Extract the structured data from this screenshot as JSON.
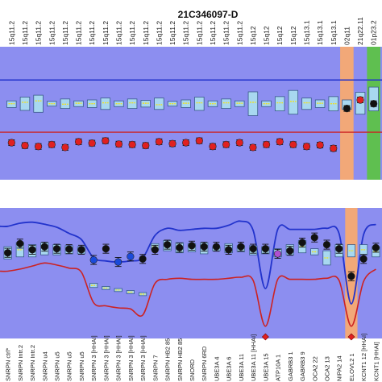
{
  "title": "21C346097-D",
  "colors": {
    "panel_bg": "#8c8ef0",
    "upper_limit_line": "#2233cc",
    "lower_limit_line": "#cc2222",
    "box_fill": "#a8d8f0",
    "box_stroke": "#3a5a8a",
    "median_mark": "#f0e020",
    "sample_red": "#e02020",
    "sample_black": "#111111",
    "sample_blue": "#1a4adb",
    "sample_purple": "#b050d0",
    "highlight_orange": "#f2a878",
    "highlight_green": "#5fbf50"
  },
  "chart_data": [
    {
      "type": "scatter",
      "panel": "top",
      "title": "21C346097-D",
      "categories": [
        "15q11.2",
        "15q11.2",
        "15q11.2",
        "15q11.2",
        "15q11.2",
        "15q11.2",
        "15q11.2",
        "15q11.2",
        "15q11.2",
        "15q11.2",
        "15q11.2",
        "15q11.2",
        "15q11.2",
        "15q11.2",
        "15q11.2",
        "15q11.2",
        "15q11.2",
        "15q11.2",
        "15q12",
        "15q12",
        "15q12",
        "15q12",
        "15q13.1",
        "15q13.1",
        "15q13.1",
        "02q11",
        "21q22.11",
        "01p23.2"
      ],
      "reference_median": [
        0.0,
        0.03,
        0.06,
        0.0,
        -0.01,
        0.01,
        0.0,
        0.02,
        0.0,
        0.02,
        0.01,
        -0.02,
        0.0,
        0.01,
        0.02,
        0.0,
        0.02,
        0.01,
        0.03,
        0.0,
        0.02,
        0.05,
        0.02,
        0.01,
        0.0,
        -0.05,
        0.05,
        -0.03
      ],
      "reference_box": [
        [
          -0.08,
          0.06
        ],
        [
          -0.14,
          0.14
        ],
        [
          -0.18,
          0.18
        ],
        [
          -0.05,
          0.05
        ],
        [
          -0.1,
          0.1
        ],
        [
          -0.06,
          0.06
        ],
        [
          -0.08,
          0.08
        ],
        [
          -0.12,
          0.12
        ],
        [
          -0.06,
          0.06
        ],
        [
          -0.1,
          0.1
        ],
        [
          -0.07,
          0.07
        ],
        [
          -0.12,
          0.12
        ],
        [
          -0.05,
          0.05
        ],
        [
          -0.08,
          0.08
        ],
        [
          -0.14,
          0.14
        ],
        [
          -0.06,
          0.06
        ],
        [
          -0.1,
          0.1
        ],
        [
          -0.06,
          0.06
        ],
        [
          -0.25,
          0.25
        ],
        [
          -0.06,
          0.06
        ],
        [
          -0.15,
          0.15
        ],
        [
          -0.22,
          0.28
        ],
        [
          -0.12,
          0.12
        ],
        [
          -0.08,
          0.08
        ],
        [
          -0.15,
          0.15
        ],
        [
          -0.12,
          0.08
        ],
        [
          -0.22,
          0.24
        ],
        [
          -0.15,
          0.35
        ]
      ],
      "sample_values": [
        -0.82,
        -0.88,
        -0.9,
        -0.86,
        -0.92,
        -0.8,
        -0.83,
        -0.78,
        -0.85,
        -0.86,
        -0.88,
        -0.8,
        -0.84,
        -0.82,
        -0.78,
        -0.9,
        -0.86,
        -0.82,
        -0.92,
        -0.86,
        -0.8,
        -0.86,
        -0.9,
        -0.87,
        -0.94,
        -0.1,
        0.08,
        0.0
      ],
      "sample_error": 0.06,
      "upper_limit": 0.5,
      "lower_limit": -0.6,
      "ylim": [
        -1.6,
        1.2
      ],
      "highlights": [
        {
          "index": 25,
          "color": "orange"
        },
        {
          "index": 27,
          "color": "green"
        }
      ]
    },
    {
      "type": "scatter",
      "panel": "bottom",
      "categories": [
        "SNRPN ctrl*",
        "SNRPN Intr.2",
        "SNRPN Intr.2",
        "SNRPN u4",
        "SNRPN u5",
        "SNRPN u5",
        "SNRPN u5",
        "SNRPN 3 [HHAI]",
        "SNRPN 3 [HHAI]",
        "SNRPN 3 [HHAI]",
        "SNRPN 3 [HHAI]",
        "SNRPN 3 [HHAI]",
        "SNRPN 7",
        "SNRPN HB2 85",
        "SNRPN HB2 85",
        "SNORD",
        "SNRPN 6RD",
        "UBE3A 4",
        "UBE3A 6",
        "UBE3A 11",
        "UBE3A 11 [HHAI]",
        "UBE3A 15",
        "ATP10A 1",
        "GABRB3 1",
        "GABRB3 9",
        "OCA2 22",
        "OCA2 13",
        "NIPA2 14",
        "ELOVL2 1",
        "KCNT1 12 [HHAI]",
        "KCNT1 [HHAI]"
      ],
      "sample_values": [
        0.0,
        0.45,
        0.15,
        0.3,
        0.2,
        0.18,
        0.15,
        -0.35,
        0.2,
        -0.45,
        -0.18,
        -0.3,
        0.15,
        0.4,
        0.25,
        0.35,
        0.3,
        0.3,
        0.15,
        0.3,
        0.2,
        0.2,
        -0.05,
        0.1,
        0.5,
        0.75,
        0.4,
        0.2,
        -1.15,
        -0.3,
        0.25
      ],
      "sample_colors": [
        "black",
        "black",
        "black",
        "black",
        "black",
        "black",
        "black",
        "blue",
        "black",
        "blue",
        "blue",
        "black",
        "black",
        "black",
        "black",
        "black",
        "black",
        "black",
        "black",
        "black",
        "black",
        "black",
        "purple",
        "black",
        "black",
        "black",
        "black",
        "black",
        "black",
        "black",
        "black"
      ],
      "reference_box": [
        [
          -0.3,
          0.3
        ],
        [
          -0.2,
          0.5
        ],
        [
          -0.2,
          0.4
        ],
        [
          -0.1,
          0.5
        ],
        [
          -0.1,
          0.4
        ],
        [
          -0.05,
          0.35
        ],
        [
          -0.05,
          0.3
        ],
        [
          -1.7,
          -1.5
        ],
        [
          -1.8,
          -1.65
        ],
        [
          -1.9,
          -1.75
        ],
        [
          -2.0,
          -1.85
        ],
        [
          -2.1,
          -1.95
        ],
        [
          0.15,
          0.45
        ],
        [
          0.1,
          0.6
        ],
        [
          0.0,
          0.5
        ],
        [
          0.05,
          0.45
        ],
        [
          -0.05,
          0.5
        ],
        [
          0.1,
          0.3
        ],
        [
          0.0,
          0.45
        ],
        [
          0.05,
          0.35
        ],
        [
          -0.1,
          0.35
        ],
        [
          -0.05,
          0.3
        ],
        [
          -0.2,
          0.2
        ],
        [
          -0.1,
          0.4
        ],
        [
          0.0,
          0.6
        ],
        [
          -0.1,
          0.2
        ],
        [
          -0.6,
          0.1
        ],
        [
          -0.2,
          0.4
        ],
        [
          -0.2,
          0.4
        ],
        [
          -0.1,
          0.4
        ],
        [
          -0.2,
          0.3
        ]
      ],
      "upper_limit": [
        1.3,
        1.45,
        1.5,
        1.4,
        1.25,
        0.95,
        0.65,
        -0.25,
        -0.4,
        -0.45,
        -0.4,
        -0.25,
        0.85,
        1.2,
        1.1,
        1.15,
        1.2,
        1.2,
        1.35,
        1.55,
        1.1,
        -1.75,
        1.15,
        1.15,
        1.15,
        1.15,
        1.2,
        0.95,
        -2.5,
        0.9,
        1.4
      ],
      "lower_limit": [
        -0.9,
        -0.8,
        -0.65,
        -0.5,
        -0.6,
        -0.75,
        -0.95,
        -2.45,
        -2.6,
        -2.7,
        -2.75,
        -3.05,
        -1.5,
        -1.3,
        -1.25,
        -1.3,
        -1.3,
        -1.3,
        -1.25,
        -1.2,
        -1.35,
        -3.6,
        -1.3,
        -1.3,
        -1.3,
        -1.3,
        -1.25,
        -1.35,
        -3.6,
        -1.4,
        -0.8
      ],
      "ylim": [
        -4.2,
        2.2
      ],
      "highlights": [
        {
          "index": 28,
          "color": "orange"
        }
      ]
    }
  ]
}
